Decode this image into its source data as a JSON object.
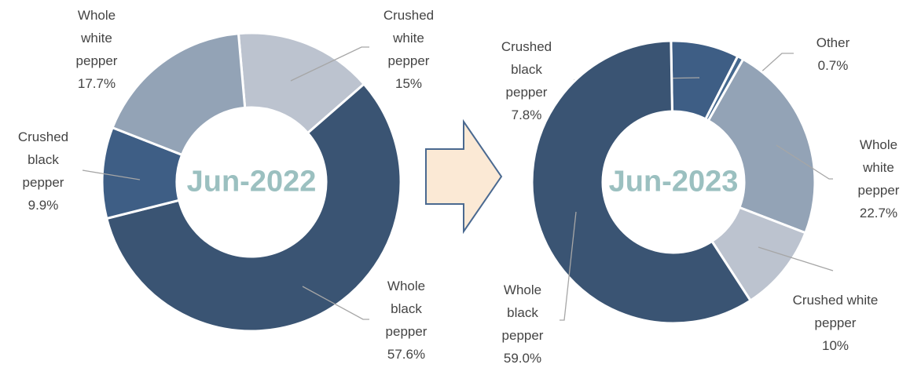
{
  "chart_data": [
    {
      "type": "donut",
      "title": "Jun-2022",
      "categories": [
        "Crushed white pepper",
        "Whole black pepper",
        "Crushed black pepper",
        "Whole white pepper"
      ],
      "values": [
        15,
        57.6,
        9.9,
        17.7
      ],
      "value_labels": [
        "15%",
        "57.6%",
        "9.9%",
        "17.7%"
      ],
      "colors": [
        "#bcc3cf",
        "#3a5473",
        "#3e5e85",
        "#93a3b6"
      ]
    },
    {
      "type": "donut",
      "title": "Jun-2023",
      "categories": [
        "Crushed black pepper",
        "Other",
        "Whole white pepper",
        "Crushed white pepper",
        "Whole black pepper"
      ],
      "values": [
        7.8,
        0.7,
        22.7,
        10,
        59.0
      ],
      "value_labels": [
        "7.8%",
        "0.7%",
        "22.7%",
        "10%",
        "59.0%"
      ],
      "colors": [
        "#3e5e85",
        "#46698f",
        "#93a3b6",
        "#bcc3cf",
        "#3a5473"
      ]
    }
  ]
}
